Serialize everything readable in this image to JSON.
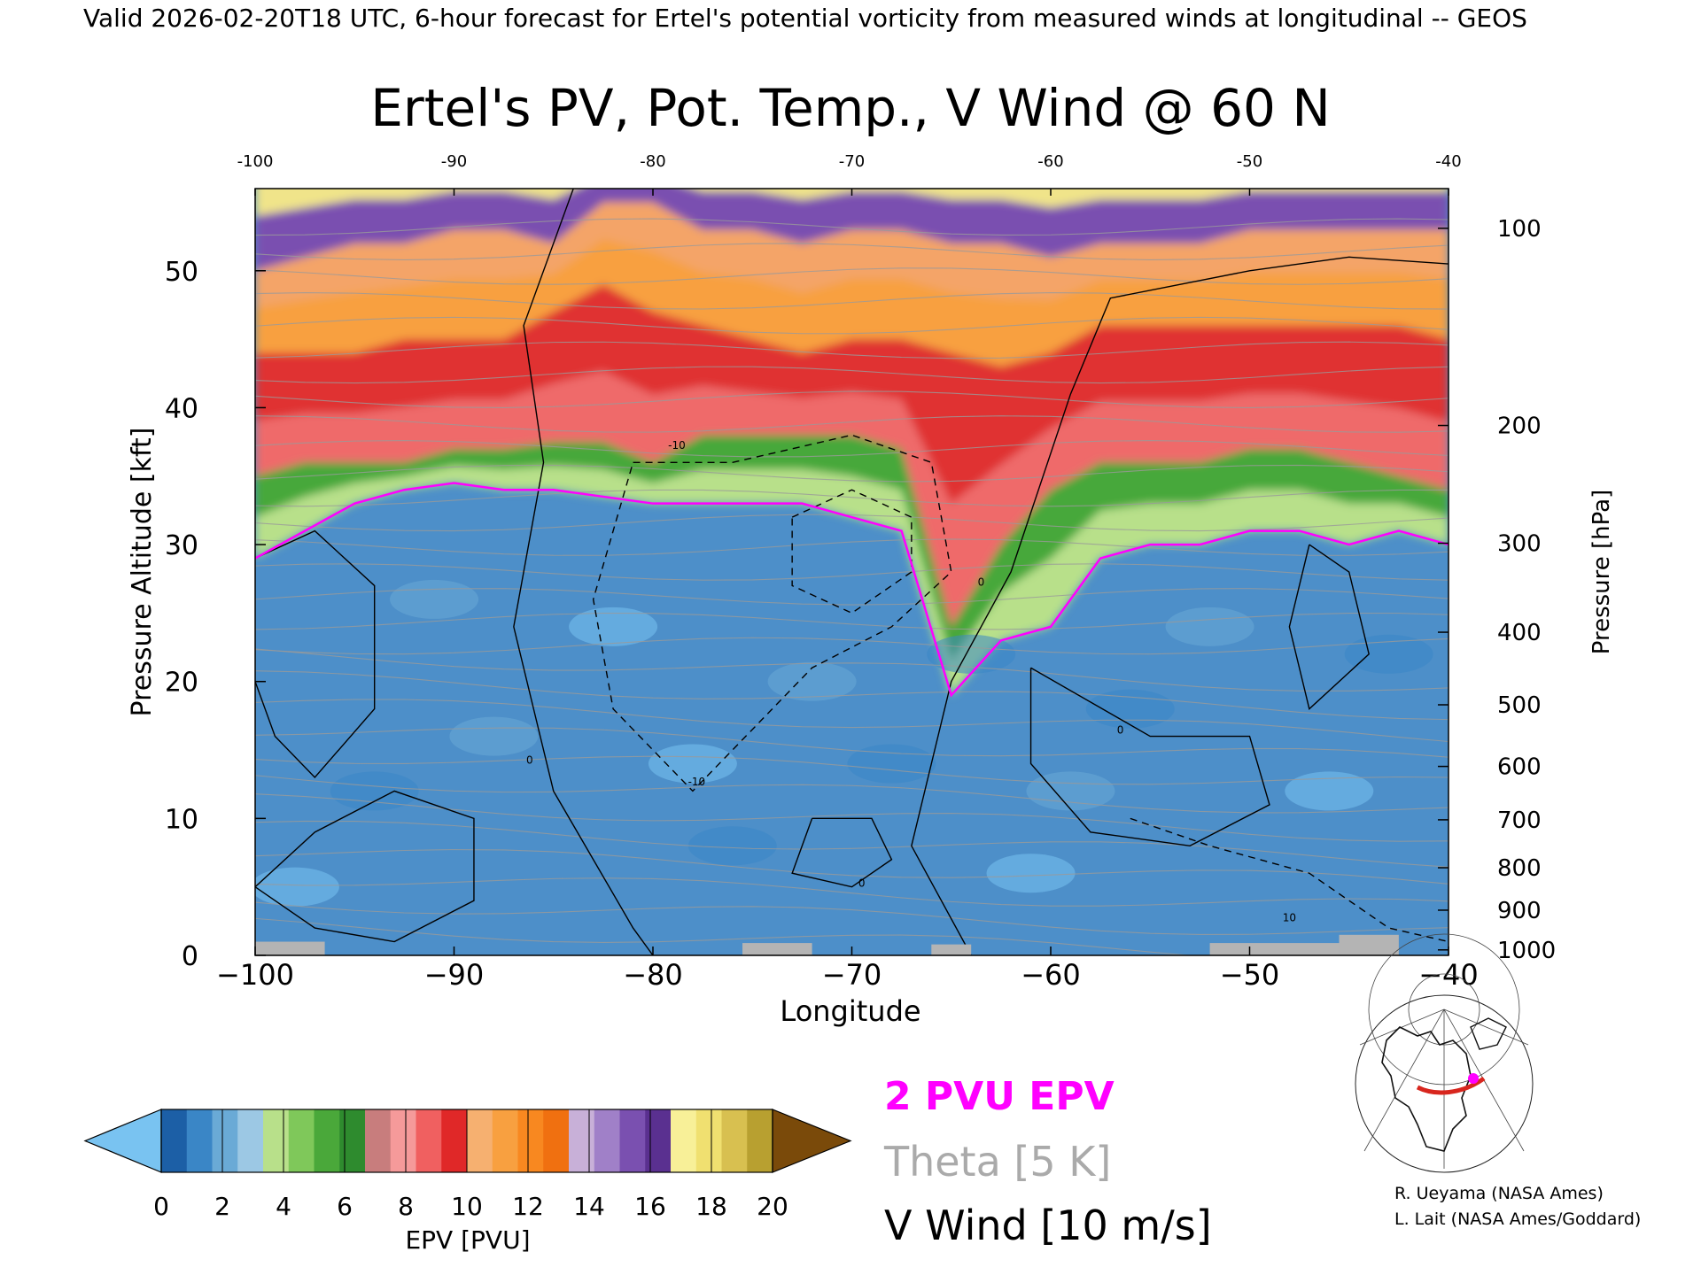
{
  "header": "Valid 2026-02-20T18 UTC, 6-hour forecast for Ertel's potential vorticity from measured winds at longitudinal -- GEOS",
  "chart_data": {
    "type": "heatmap",
    "title": "Ertel's PV, Pot. Temp., V Wind @ 60 N",
    "xlabel": "Longitude",
    "ylabel_left": "Pressure Altitude [kft]",
    "ylabel_right": "Pressure [hPa]",
    "xlim": [
      -100,
      -40
    ],
    "ylim": [
      0,
      56
    ],
    "x_ticks": [
      -100,
      -90,
      -80,
      -70,
      -60,
      -50,
      -40
    ],
    "x_tick_labels": [
      "−100",
      "−90",
      "−80",
      "−70",
      "−60",
      "−50",
      "−40"
    ],
    "top_tick_labels": [
      "-100",
      "-90",
      "-80",
      "-70",
      "-60",
      "-50",
      "-40"
    ],
    "y_ticks": [
      0,
      10,
      20,
      30,
      40,
      50
    ],
    "y_tick_labels": [
      "0",
      "10",
      "20",
      "30",
      "40",
      "50"
    ],
    "pressure_ticks": [
      {
        "hpa": 1000,
        "kft": 0.4,
        "label": "1000"
      },
      {
        "hpa": 900,
        "kft": 3.3,
        "label": "900"
      },
      {
        "hpa": 800,
        "kft": 6.4,
        "label": "800"
      },
      {
        "hpa": 700,
        "kft": 9.9,
        "label": "700"
      },
      {
        "hpa": 600,
        "kft": 13.8,
        "label": "600"
      },
      {
        "hpa": 500,
        "kft": 18.3,
        "label": "500"
      },
      {
        "hpa": 400,
        "kft": 23.6,
        "label": "400"
      },
      {
        "hpa": 300,
        "kft": 30.1,
        "label": "300"
      },
      {
        "hpa": 200,
        "kft": 38.7,
        "label": "200"
      },
      {
        "hpa": 100,
        "kft": 53.1,
        "label": "100"
      }
    ],
    "epv_bands": {
      "x": [
        -100,
        -97.5,
        -95,
        -92.5,
        -90,
        -87.5,
        -85,
        -82.5,
        -80,
        -77.5,
        -75,
        -72.5,
        -70,
        -67.5,
        -65,
        -62.5,
        -60,
        -57.5,
        -55,
        -52.5,
        -50,
        -47.5,
        -45,
        -42.5,
        -40
      ],
      "pvu2_level": [
        29,
        31,
        33,
        34,
        34.5,
        34,
        34,
        33.5,
        33,
        33,
        33,
        33,
        32,
        31,
        19,
        23,
        24,
        29,
        30,
        30,
        31,
        31,
        30,
        31,
        30
      ],
      "pvu6_level": [
        35,
        36,
        36,
        36,
        37,
        37,
        37.5,
        37.5,
        36,
        38,
        38,
        38,
        38,
        37,
        24,
        30,
        34,
        36,
        36,
        36,
        37,
        37,
        36,
        35,
        34
      ],
      "pvu12_level": [
        44,
        44,
        44,
        45,
        45,
        45,
        47,
        49,
        47,
        46,
        45,
        44,
        45,
        45,
        44,
        43,
        44,
        46,
        46,
        46,
        46,
        46,
        46,
        46,
        45
      ],
      "pvu16_level": [
        50,
        51,
        52,
        52,
        53,
        53,
        52,
        55,
        55,
        53,
        53,
        52,
        53,
        53,
        52,
        52,
        51,
        52,
        52,
        52,
        53,
        53,
        53,
        53,
        53
      ]
    },
    "theta_levels_K": [
      "300",
      "320",
      "330",
      "340",
      "360",
      "370",
      "380",
      "390",
      "400",
      "410",
      "420"
    ],
    "v_wind_contours_ms": [
      "-10",
      "0",
      "10"
    ],
    "colorbar": {
      "label": "EPV [PVU]",
      "ticks": [
        "0",
        "2",
        "4",
        "6",
        "8",
        "10",
        "12",
        "14",
        "16",
        "18",
        "20"
      ],
      "colors": [
        "#1c5fa6",
        "#3a86c6",
        "#6aaad6",
        "#9cc8e4",
        "#b8e08a",
        "#7fc85a",
        "#4aa83a",
        "#2e8b2e",
        "#c87d7d",
        "#f59a9a",
        "#f06060",
        "#e02828",
        "#f6b070",
        "#f8a040",
        "#f88820",
        "#f07010",
        "#c8b0d8",
        "#a080c8",
        "#7a50b0",
        "#5a3090",
        "#f8f098",
        "#f0e070",
        "#d8c050",
        "#b8a030"
      ],
      "under_color": "#79c3f1",
      "over_color": "#7a4a0a"
    }
  },
  "legend": {
    "pvu": "2 PVU EPV",
    "theta": "Theta [5 K]",
    "vwind": "V Wind [10 m/s]",
    "pvu_color": "#ff00ff",
    "theta_color": "#aaaaaa",
    "vwind_color": "#000000"
  },
  "credits": {
    "line1": "R. Ueyama (NASA Ames)",
    "line2": "L. Lait (NASA Ames/Goddard)"
  },
  "colors": {
    "pvu_line": "#ff00ff",
    "theta_line": "#9a9a9a",
    "wind_line": "#000000",
    "ground": "#b4b4b4"
  }
}
